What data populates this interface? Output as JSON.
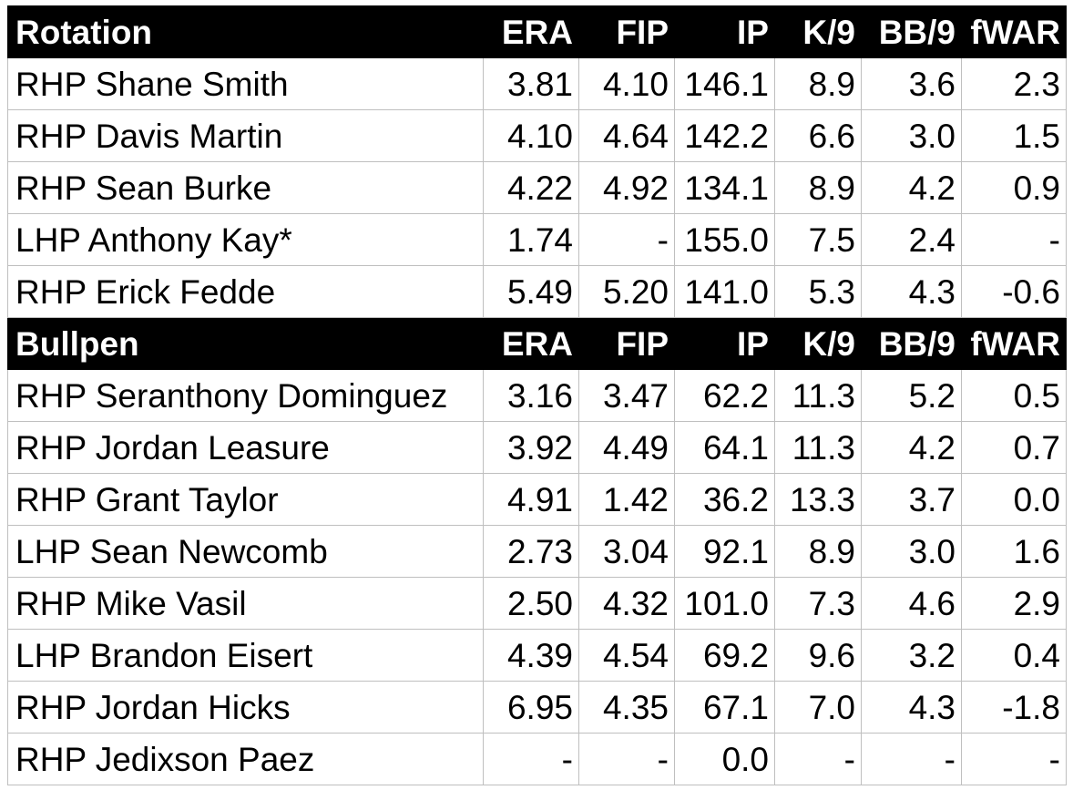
{
  "sections": [
    {
      "title": "Rotation",
      "columns": [
        "ERA",
        "FIP",
        "IP",
        "K/9",
        "BB/9",
        "fWAR"
      ],
      "rows": [
        {
          "name": "RHP Shane Smith",
          "values": [
            "3.81",
            "4.10",
            "146.1",
            "8.9",
            "3.6",
            "2.3"
          ]
        },
        {
          "name": "RHP Davis Martin",
          "values": [
            "4.10",
            "4.64",
            "142.2",
            "6.6",
            "3.0",
            "1.5"
          ]
        },
        {
          "name": "RHP Sean Burke",
          "values": [
            "4.22",
            "4.92",
            "134.1",
            "8.9",
            "4.2",
            "0.9"
          ]
        },
        {
          "name": "LHP Anthony Kay*",
          "values": [
            "1.74",
            "-",
            "155.0",
            "7.5",
            "2.4",
            "-"
          ]
        },
        {
          "name": "RHP Erick Fedde",
          "values": [
            "5.49",
            "5.20",
            "141.0",
            "5.3",
            "4.3",
            "-0.6"
          ]
        }
      ]
    },
    {
      "title": "Bullpen",
      "columns": [
        "ERA",
        "FIP",
        "IP",
        "K/9",
        "BB/9",
        "fWAR"
      ],
      "rows": [
        {
          "name": "RHP Seranthony Dominguez",
          "values": [
            "3.16",
            "3.47",
            "62.2",
            "11.3",
            "5.2",
            "0.5"
          ]
        },
        {
          "name": "RHP Jordan Leasure",
          "values": [
            "3.92",
            "4.49",
            "64.1",
            "11.3",
            "4.2",
            "0.7"
          ]
        },
        {
          "name": "RHP Grant Taylor",
          "values": [
            "4.91",
            "1.42",
            "36.2",
            "13.3",
            "3.7",
            "0.0"
          ]
        },
        {
          "name": "LHP Sean Newcomb",
          "values": [
            "2.73",
            "3.04",
            "92.1",
            "8.9",
            "3.0",
            "1.6"
          ]
        },
        {
          "name": "RHP Mike Vasil",
          "values": [
            "2.50",
            "4.32",
            "101.0",
            "7.3",
            "4.6",
            "2.9"
          ]
        },
        {
          "name": "LHP Brandon Eisert",
          "values": [
            "4.39",
            "4.54",
            "69.2",
            "9.6",
            "3.2",
            "0.4"
          ]
        },
        {
          "name": "RHP Jordan Hicks",
          "values": [
            "6.95",
            "4.35",
            "67.1",
            "7.0",
            "4.3",
            "-1.8"
          ]
        },
        {
          "name": "RHP Jedixson Paez",
          "values": [
            "-",
            "-",
            "0.0",
            "-",
            "-",
            "-"
          ]
        }
      ]
    }
  ]
}
